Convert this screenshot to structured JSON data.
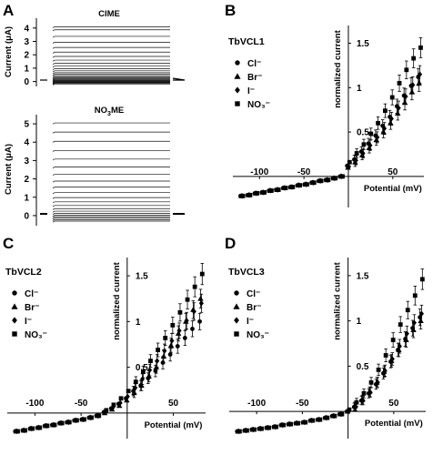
{
  "panel_a": {
    "letter": "A",
    "top": {
      "title": "ClME",
      "ylabel": "Current (μA)",
      "yticks": [
        "4",
        "3",
        "2",
        "1",
        "0"
      ],
      "ylim": [
        -0.3,
        4.6
      ],
      "trace_levels": [
        -0.18,
        -0.13,
        -0.08,
        -0.04,
        0.0,
        0.04,
        0.09,
        0.14,
        0.2,
        0.27,
        0.35,
        0.44,
        0.54,
        0.66,
        0.8,
        0.96,
        1.15,
        1.36,
        1.6,
        1.88,
        2.2,
        2.55,
        2.94,
        3.38,
        3.87,
        4.1
      ]
    },
    "bottom": {
      "title": "NO3ME",
      "title_main": "NO",
      "title_sub": "3",
      "title_end": "ME",
      "ylabel": "Current (μA)",
      "yticks": [
        "5",
        "4",
        "3",
        "2",
        "1",
        "0"
      ],
      "ylim": [
        -0.45,
        5.4
      ],
      "trace_levels": [
        -0.3,
        -0.22,
        -0.14,
        -0.06,
        0.02,
        0.12,
        0.24,
        0.38,
        0.55,
        0.75,
        0.98,
        1.25,
        1.55,
        1.88,
        2.25,
        2.65,
        3.08,
        3.55,
        4.05,
        4.55,
        5.05
      ]
    }
  },
  "chart_data": [
    {
      "id": "B",
      "type": "scatter",
      "title": "TbVCL1",
      "xlabel": "Potential (mV)",
      "ylabel": "normalized current",
      "xlim": [
        -130,
        85
      ],
      "ylim": [
        -0.35,
        1.7
      ],
      "xticks": [
        -100,
        -50,
        50
      ],
      "yticks": [
        0.5,
        1,
        1.5
      ],
      "legend": [
        "Cl⁻",
        "Br⁻",
        "I⁻",
        "NO₃⁻"
      ],
      "x": [
        -120,
        -112,
        -104,
        -96,
        -88,
        -80,
        -72,
        -64,
        -56,
        -48,
        -40,
        -32,
        -24,
        -16,
        -8,
        0,
        8,
        16,
        24,
        32,
        40,
        48,
        56,
        64,
        72,
        80
      ],
      "series": [
        {
          "name": "Cl⁻",
          "marker": "circle",
          "values": [
            -0.22,
            -0.21,
            -0.19,
            -0.18,
            -0.16,
            -0.15,
            -0.13,
            -0.12,
            -0.1,
            -0.09,
            -0.07,
            -0.05,
            -0.04,
            -0.02,
            0.0,
            0.12,
            0.19,
            0.28,
            0.37,
            0.46,
            0.57,
            0.67,
            0.79,
            0.91,
            1.02,
            1.12
          ]
        },
        {
          "name": "Br⁻",
          "marker": "triangle",
          "values": [
            -0.22,
            -0.21,
            -0.19,
            -0.18,
            -0.16,
            -0.15,
            -0.13,
            -0.12,
            -0.1,
            -0.09,
            -0.07,
            -0.05,
            -0.04,
            -0.02,
            0.0,
            0.1,
            0.16,
            0.24,
            0.32,
            0.41,
            0.5,
            0.6,
            0.71,
            0.83,
            0.95,
            1.05
          ]
        },
        {
          "name": "I⁻",
          "marker": "diamond",
          "values": [
            -0.22,
            -0.21,
            -0.19,
            -0.18,
            -0.16,
            -0.15,
            -0.13,
            -0.12,
            -0.1,
            -0.09,
            -0.07,
            -0.05,
            -0.04,
            -0.02,
            0.0,
            0.11,
            0.18,
            0.26,
            0.35,
            0.44,
            0.54,
            0.65,
            0.77,
            0.9,
            1.03,
            1.15
          ]
        },
        {
          "name": "NO₃⁻",
          "marker": "square",
          "values": [
            -0.22,
            -0.21,
            -0.19,
            -0.18,
            -0.16,
            -0.15,
            -0.13,
            -0.12,
            -0.1,
            -0.09,
            -0.07,
            -0.05,
            -0.04,
            -0.02,
            0.0,
            0.16,
            0.26,
            0.36,
            0.48,
            0.6,
            0.74,
            0.89,
            1.05,
            1.2,
            1.33,
            1.45
          ]
        }
      ]
    },
    {
      "id": "C",
      "type": "scatter",
      "title": "TbVCL2",
      "xlabel": "Potential (mV)",
      "ylabel": "normalized current",
      "xlim": [
        -130,
        85
      ],
      "ylim": [
        -0.28,
        1.7
      ],
      "xticks": [
        -100,
        -50,
        50
      ],
      "yticks": [
        0.5,
        1,
        1.5
      ],
      "legend": [
        "Cl⁻",
        "Br⁻",
        "I⁻",
        "NO₃⁻"
      ],
      "x": [
        -120,
        -112,
        -104,
        -96,
        -88,
        -80,
        -72,
        -64,
        -56,
        -48,
        -40,
        -32,
        -24,
        -16,
        -8,
        0,
        8,
        16,
        24,
        32,
        40,
        48,
        56,
        64,
        72,
        80
      ],
      "series": [
        {
          "name": "Cl⁻",
          "marker": "circle",
          "values": [
            -0.2,
            -0.19,
            -0.17,
            -0.16,
            -0.14,
            -0.13,
            -0.11,
            -0.1,
            -0.08,
            -0.07,
            -0.05,
            -0.03,
            0.01,
            0.05,
            0.1,
            0.16,
            0.24,
            0.3,
            0.38,
            0.46,
            0.55,
            0.64,
            0.73,
            0.82,
            0.92,
            1.0
          ]
        },
        {
          "name": "Br⁻",
          "marker": "triangle",
          "values": [
            -0.2,
            -0.19,
            -0.17,
            -0.16,
            -0.14,
            -0.13,
            -0.11,
            -0.1,
            -0.08,
            -0.07,
            -0.05,
            -0.03,
            0.0,
            0.04,
            0.08,
            0.14,
            0.22,
            0.3,
            0.4,
            0.5,
            0.62,
            0.74,
            0.87,
            1.0,
            1.13,
            1.25
          ]
        },
        {
          "name": "I⁻",
          "marker": "diamond",
          "values": [
            -0.2,
            -0.19,
            -0.17,
            -0.16,
            -0.14,
            -0.13,
            -0.11,
            -0.1,
            -0.08,
            -0.07,
            -0.05,
            -0.03,
            0.01,
            0.06,
            0.11,
            0.18,
            0.27,
            0.37,
            0.47,
            0.57,
            0.68,
            0.79,
            0.9,
            1.01,
            1.11,
            1.2
          ]
        },
        {
          "name": "NO₃⁻",
          "marker": "square",
          "values": [
            -0.2,
            -0.19,
            -0.17,
            -0.16,
            -0.14,
            -0.13,
            -0.11,
            -0.1,
            -0.08,
            -0.07,
            -0.05,
            -0.03,
            0.03,
            0.09,
            0.16,
            0.24,
            0.34,
            0.45,
            0.57,
            0.69,
            0.82,
            0.96,
            1.1,
            1.24,
            1.38,
            1.52
          ]
        }
      ]
    },
    {
      "id": "D",
      "type": "scatter",
      "title": "TbVCL3",
      "xlabel": "Potential (mV)",
      "ylabel": "normalized current",
      "xlim": [
        -130,
        85
      ],
      "ylim": [
        -0.3,
        1.7
      ],
      "xticks": [
        -100,
        -50,
        50
      ],
      "yticks": [
        0.5,
        1,
        1.5
      ],
      "legend": [
        "Cl⁻",
        "Br⁻",
        "I⁻",
        "NO₃⁻"
      ],
      "x": [
        -120,
        -112,
        -104,
        -96,
        -88,
        -80,
        -72,
        -64,
        -56,
        -48,
        -40,
        -32,
        -24,
        -16,
        -8,
        0,
        8,
        16,
        24,
        32,
        40,
        48,
        56,
        64,
        72,
        80
      ],
      "series": [
        {
          "name": "Cl⁻",
          "marker": "circle",
          "values": [
            -0.22,
            -0.21,
            -0.2,
            -0.19,
            -0.18,
            -0.17,
            -0.15,
            -0.14,
            -0.13,
            -0.12,
            -0.1,
            -0.09,
            -0.07,
            -0.05,
            -0.03,
            0.0,
            0.05,
            0.12,
            0.2,
            0.3,
            0.42,
            0.55,
            0.68,
            0.8,
            0.92,
            1.04
          ]
        },
        {
          "name": "Br⁻",
          "marker": "triangle",
          "values": [
            -0.22,
            -0.21,
            -0.2,
            -0.19,
            -0.18,
            -0.17,
            -0.15,
            -0.14,
            -0.13,
            -0.12,
            -0.1,
            -0.09,
            -0.07,
            -0.05,
            -0.03,
            0.0,
            0.06,
            0.13,
            0.22,
            0.32,
            0.44,
            0.56,
            0.68,
            0.79,
            0.9,
            1.0
          ]
        },
        {
          "name": "I⁻",
          "marker": "diamond",
          "values": [
            -0.22,
            -0.21,
            -0.2,
            -0.19,
            -0.18,
            -0.17,
            -0.15,
            -0.14,
            -0.13,
            -0.12,
            -0.1,
            -0.09,
            -0.07,
            -0.05,
            -0.03,
            0.0,
            0.05,
            0.12,
            0.21,
            0.32,
            0.45,
            0.58,
            0.72,
            0.86,
            0.98,
            1.08
          ]
        },
        {
          "name": "NO₃⁻",
          "marker": "square",
          "values": [
            -0.22,
            -0.21,
            -0.2,
            -0.19,
            -0.18,
            -0.17,
            -0.15,
            -0.14,
            -0.13,
            -0.12,
            -0.1,
            -0.09,
            -0.07,
            -0.05,
            -0.03,
            0.02,
            0.1,
            0.2,
            0.32,
            0.46,
            0.62,
            0.79,
            0.96,
            1.12,
            1.28,
            1.46
          ]
        }
      ]
    }
  ]
}
